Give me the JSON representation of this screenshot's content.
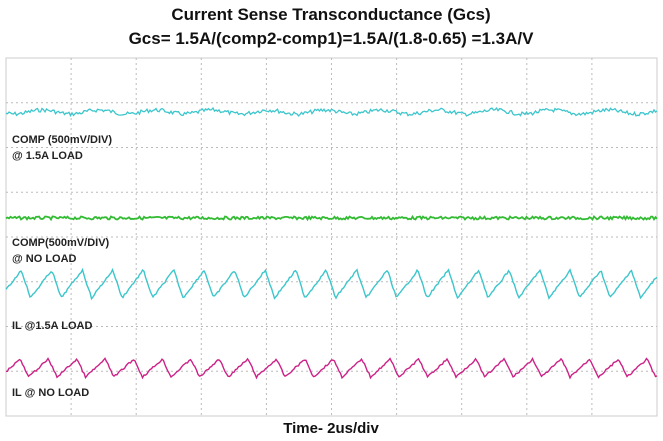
{
  "header": {
    "title": "Current Sense Transconductance (Gcs)",
    "subtitle": "Gcs= 1.5A/(comp2-comp1)=1.5A/(1.8-0.65) =1.3A/V"
  },
  "traces": [
    {
      "label": "COMP (500mV/DIV)",
      "sublabel": "@ 1.5A LOAD"
    },
    {
      "label": "COMP(500mV/DIV)",
      "sublabel": "@ NO LOAD"
    },
    {
      "label": "IL @1.5A LOAD"
    },
    {
      "label": "IL @ NO LOAD"
    }
  ],
  "footer": {
    "time_label": "Time- 2us/div"
  }
}
